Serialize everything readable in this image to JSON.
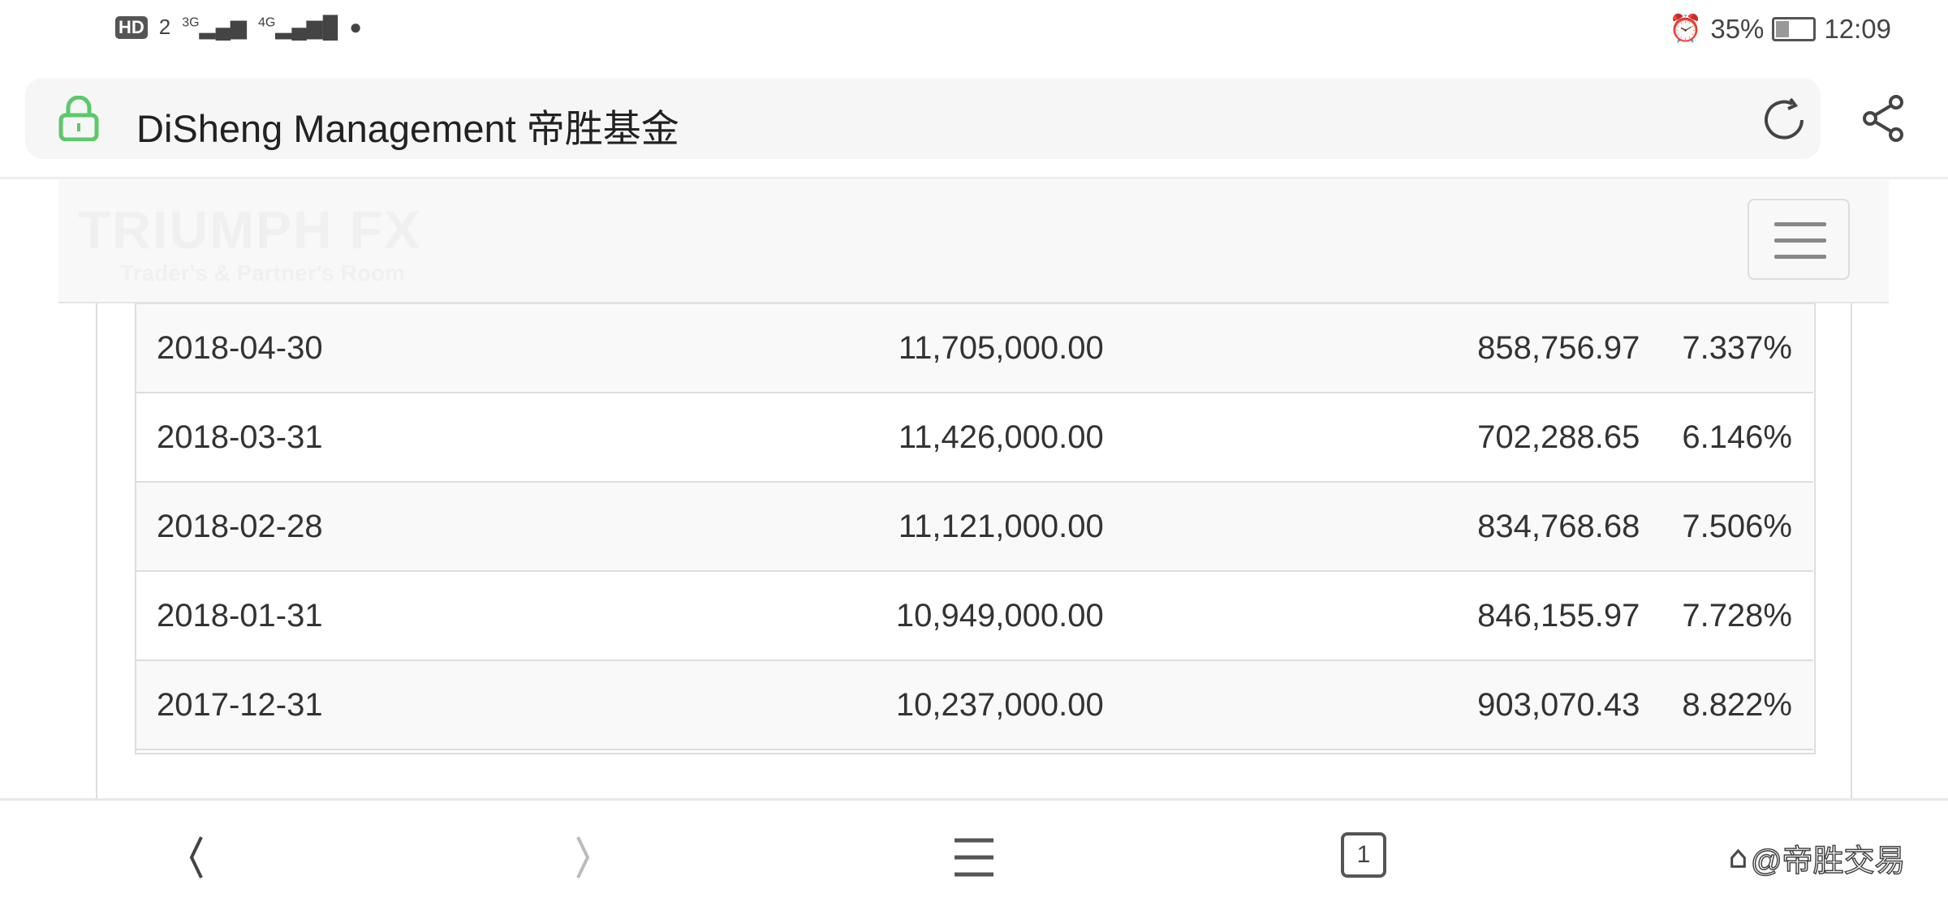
{
  "status_bar": {
    "left_indicators": [
      "HD",
      "2",
      "3G",
      "4G"
    ],
    "alarm_icon": "alarm-icon",
    "battery": "35%",
    "time": "12:09"
  },
  "browser": {
    "title": "DiSheng Management 帝胜基金",
    "lock_color": "#5cc86a"
  },
  "site_header": {
    "logo_line1": "TRIUMPH FX",
    "logo_line2": "Trader's & Partner's Room"
  },
  "table": {
    "rows": [
      [
        "2018-04-30",
        "11,705,000.00",
        "858,756.97",
        "7.337%"
      ],
      [
        "2018-03-31",
        "11,426,000.00",
        "702,288.65",
        "6.146%"
      ],
      [
        "2018-02-28",
        "11,121,000.00",
        "834,768.68",
        "7.506%"
      ],
      [
        "2018-01-31",
        "10,949,000.00",
        "846,155.97",
        "7.728%"
      ],
      [
        "2017-12-31",
        "10,237,000.00",
        "903,070.43",
        "8.822%"
      ]
    ]
  },
  "bottom_nav": {
    "tab_count": "1",
    "watermark": "@帝胜交易"
  }
}
